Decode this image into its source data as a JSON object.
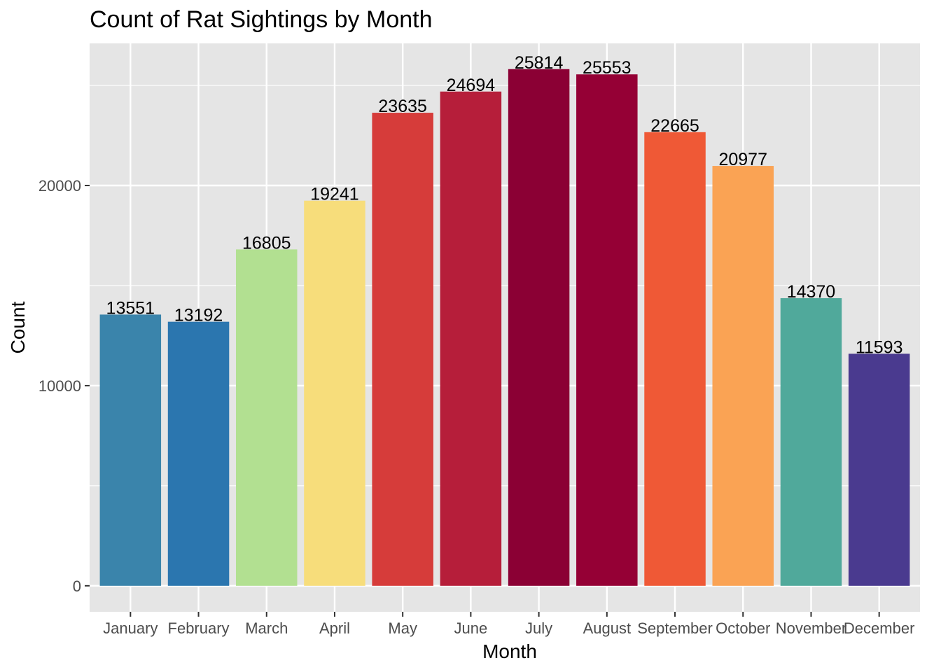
{
  "chart_data": {
    "type": "bar",
    "title": "Count of Rat Sightings by Month",
    "xlabel": "Month",
    "ylabel": "Count",
    "categories": [
      "January",
      "February",
      "March",
      "April",
      "May",
      "June",
      "July",
      "August",
      "September",
      "October",
      "November",
      "December"
    ],
    "values": [
      13551,
      13192,
      16805,
      19241,
      23635,
      24694,
      25814,
      25553,
      22665,
      20977,
      14370,
      11593
    ],
    "value_labels": [
      "13551",
      "13192",
      "16805",
      "19241",
      "23635",
      "24694",
      "25814",
      "25553",
      "22665",
      "20977",
      "14370",
      "11593"
    ],
    "bar_colors": [
      "#3A84AB",
      "#2B76AF",
      "#B2E091",
      "#F7DD7B",
      "#D63C3A",
      "#B61E3A",
      "#8B0034",
      "#950035",
      "#EF5936",
      "#FAA354",
      "#50A99B",
      "#4A3A8F"
    ],
    "ylim": [
      -1300,
      27100
    ],
    "yticks": [
      0,
      10000,
      20000
    ],
    "ytick_labels": [
      "0",
      "10000",
      "20000"
    ],
    "grid": true,
    "legend": "none",
    "panel_background": "#E5E5E5",
    "grid_color": "#FFFFFF"
  }
}
